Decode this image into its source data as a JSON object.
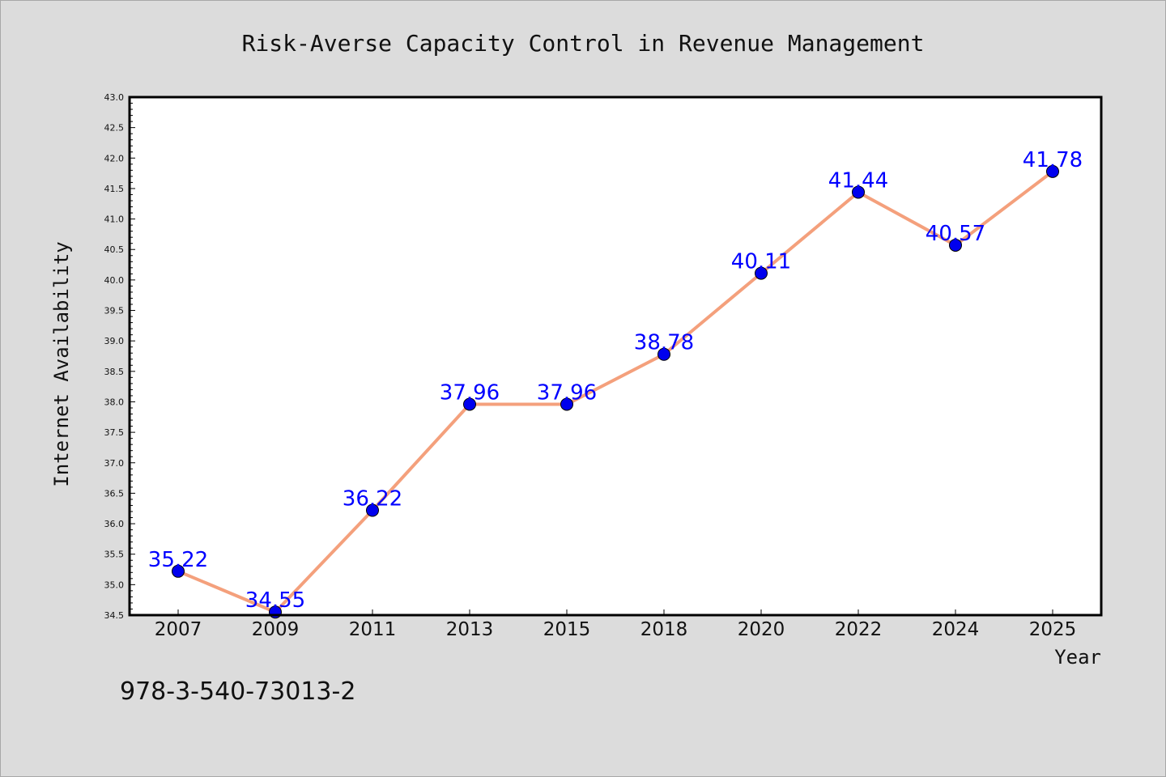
{
  "chart_data": {
    "type": "line",
    "title": "Risk-Averse Capacity Control in Revenue Management",
    "xlabel": "Year",
    "ylabel": "Internet Availability",
    "categories": [
      "2007",
      "2009",
      "2011",
      "2013",
      "2015",
      "2018",
      "2020",
      "2022",
      "2024",
      "2025"
    ],
    "values": [
      35.22,
      34.55,
      36.22,
      37.96,
      37.96,
      38.78,
      40.11,
      41.44,
      40.57,
      41.78
    ],
    "data_labels": [
      "35.22",
      "34.55",
      "36.22",
      "37.96",
      "37.96",
      "38.78",
      "40.11",
      "41.44",
      "40.57",
      "41.78"
    ],
    "ylim": [
      34.5,
      43.0
    ],
    "yticks": [
      "34.5",
      "35.0",
      "35.5",
      "36.0",
      "36.5",
      "37.0",
      "37.5",
      "38.0",
      "38.5",
      "39.0",
      "39.5",
      "40.0",
      "40.5",
      "41.0",
      "41.5",
      "42.0",
      "42.5",
      "43.0"
    ],
    "grid": false,
    "legend": "none",
    "colors": {
      "line": "#f4a07c",
      "marker": "#0000ee",
      "label": "#0000ff",
      "background": "#dcdcdc",
      "plot_background": "#ffffff"
    }
  },
  "footer": {
    "isbn": "978-3-540-73013-2"
  }
}
